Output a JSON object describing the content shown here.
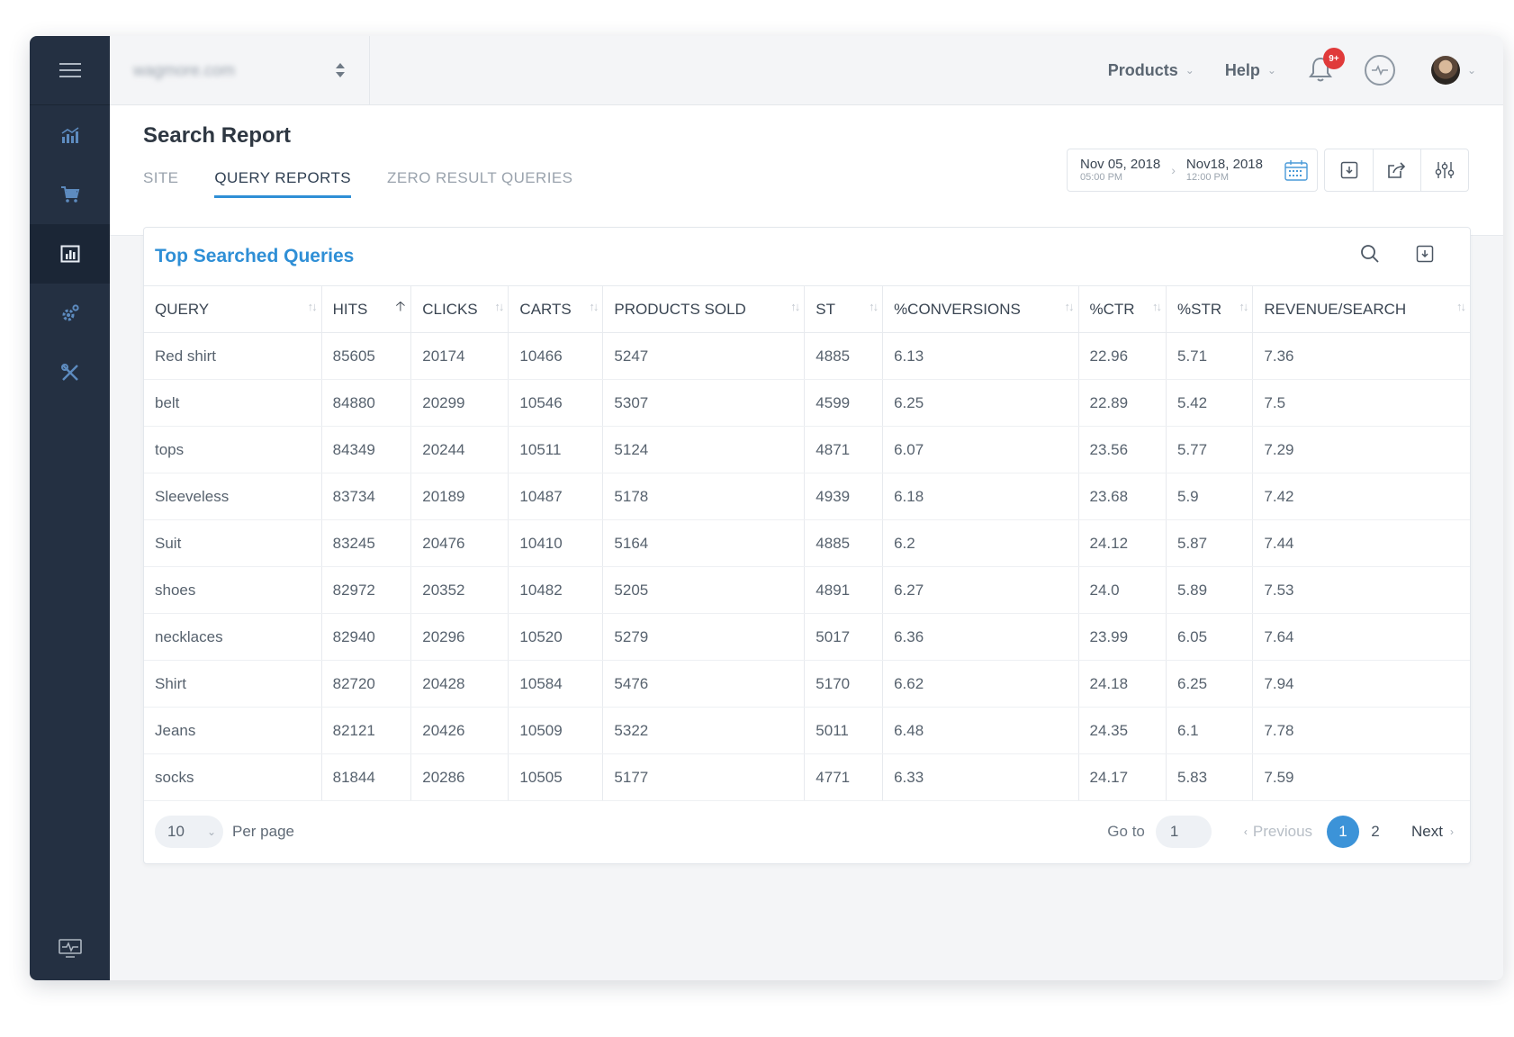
{
  "topbar": {
    "site_name": "wagmore.com",
    "products_label": "Products",
    "help_label": "Help",
    "notification_badge": "9+"
  },
  "page": {
    "title": "Search Report",
    "tabs": [
      {
        "label": "SITE"
      },
      {
        "label": "QUERY REPORTS"
      },
      {
        "label": "ZERO RESULT QUERIES"
      }
    ],
    "date_range": {
      "start_date": "Nov 05, 2018",
      "start_time": "05:00 PM",
      "end_date": "Nov18, 2018",
      "end_time": "12:00 PM"
    }
  },
  "card": {
    "title": "Top Searched Queries",
    "columns": [
      "QUERY",
      "HITS",
      "CLICKS",
      "CARTS",
      "PRODUCTS SOLD",
      "ST",
      "%CONVERSIONS",
      "%CTR",
      "%STR",
      "REVENUE/SEARCH"
    ],
    "rows": [
      [
        "Red shirt",
        "85605",
        "20174",
        "10466",
        "5247",
        "4885",
        "6.13",
        "22.96",
        "5.71",
        "7.36"
      ],
      [
        "belt",
        "84880",
        "20299",
        "10546",
        "5307",
        "4599",
        "6.25",
        "22.89",
        "5.42",
        "7.5"
      ],
      [
        "tops",
        "84349",
        "20244",
        "10511",
        "5124",
        "4871",
        "6.07",
        "23.56",
        "5.77",
        "7.29"
      ],
      [
        "Sleeveless",
        "83734",
        "20189",
        "10487",
        "5178",
        "4939",
        "6.18",
        "23.68",
        "5.9",
        "7.42"
      ],
      [
        "Suit",
        "83245",
        "20476",
        "10410",
        "5164",
        "4885",
        "6.2",
        "24.12",
        "5.87",
        "7.44"
      ],
      [
        "shoes",
        "82972",
        "20352",
        "10482",
        "5205",
        "4891",
        "6.27",
        "24.0",
        "5.89",
        "7.53"
      ],
      [
        "necklaces",
        "82940",
        "20296",
        "10520",
        "5279",
        "5017",
        "6.36",
        "23.99",
        "6.05",
        "7.64"
      ],
      [
        "Shirt",
        "82720",
        "20428",
        "10584",
        "5476",
        "5170",
        "6.62",
        "24.18",
        "6.25",
        "7.94"
      ],
      [
        "Jeans",
        "82121",
        "20426",
        "10509",
        "5322",
        "5011",
        "6.48",
        "24.35",
        "6.1",
        "7.78"
      ],
      [
        "socks",
        "81844",
        "20286",
        "10505",
        "5177",
        "4771",
        "6.33",
        "24.17",
        "5.83",
        "7.59"
      ]
    ],
    "footer": {
      "per_page_value": "10",
      "per_page_label": "Per page",
      "goto_label": "Go to",
      "goto_value": "1",
      "previous_label": "Previous",
      "pages": [
        "1",
        "2"
      ],
      "next_label": "Next"
    }
  },
  "colors": {
    "sidebar": "#243042",
    "accent": "#2f8fd6",
    "badge": "#e03a3a"
  },
  "icons": {
    "sidebar": [
      "menu-icon",
      "analytics-icon",
      "cart-icon",
      "report-icon",
      "settings-icon",
      "tools-icon",
      "monitor-icon"
    ]
  }
}
